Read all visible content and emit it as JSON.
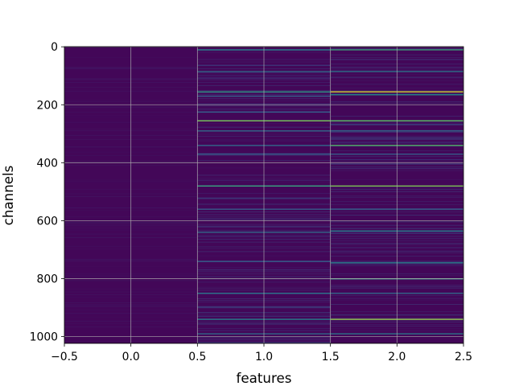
{
  "chart_data": {
    "type": "heatmap",
    "title": "",
    "xlabel": "features",
    "ylabel": "channels",
    "xlim": [
      -0.5,
      2.5
    ],
    "ylim": [
      1023.5,
      -0.5
    ],
    "y_inverted": true,
    "grid": true,
    "colormap": "viridis",
    "columns": [
      0,
      1,
      2
    ],
    "rows": 1024,
    "x_ticks": [
      -0.5,
      0.0,
      0.5,
      1.0,
      1.5,
      2.0,
      2.5
    ],
    "x_tick_labels": [
      "−0.5",
      "0.0",
      "0.5",
      "1.0",
      "1.5",
      "2.0",
      "2.5"
    ],
    "y_ticks": [
      0,
      200,
      400,
      600,
      800,
      1000
    ],
    "y_tick_labels": [
      "0",
      "200",
      "400",
      "600",
      "800",
      "1000"
    ],
    "background_value": 0.02,
    "highlights": [
      {
        "column": 1,
        "row": 10,
        "value": 0.45
      },
      {
        "column": 1,
        "row": 85,
        "value": 0.35
      },
      {
        "column": 1,
        "row": 155,
        "value": 0.55
      },
      {
        "column": 1,
        "row": 170,
        "value": 0.3
      },
      {
        "column": 1,
        "row": 225,
        "value": 0.3
      },
      {
        "column": 1,
        "row": 255,
        "value": 0.8
      },
      {
        "column": 1,
        "row": 290,
        "value": 0.35
      },
      {
        "column": 1,
        "row": 340,
        "value": 0.35
      },
      {
        "column": 1,
        "row": 370,
        "value": 0.3
      },
      {
        "column": 1,
        "row": 480,
        "value": 0.6
      },
      {
        "column": 1,
        "row": 560,
        "value": 0.3
      },
      {
        "column": 1,
        "row": 640,
        "value": 0.35
      },
      {
        "column": 1,
        "row": 740,
        "value": 0.3
      },
      {
        "column": 1,
        "row": 850,
        "value": 0.4
      },
      {
        "column": 1,
        "row": 940,
        "value": 0.45
      },
      {
        "column": 1,
        "row": 990,
        "value": 0.35
      },
      {
        "column": 2,
        "row": 10,
        "value": 0.6
      },
      {
        "column": 2,
        "row": 85,
        "value": 0.4
      },
      {
        "column": 2,
        "row": 155,
        "value": 0.95
      },
      {
        "column": 2,
        "row": 165,
        "value": 0.5
      },
      {
        "column": 2,
        "row": 255,
        "value": 0.75
      },
      {
        "column": 2,
        "row": 290,
        "value": 0.35
      },
      {
        "column": 2,
        "row": 340,
        "value": 0.7
      },
      {
        "column": 2,
        "row": 370,
        "value": 0.3
      },
      {
        "column": 2,
        "row": 480,
        "value": 0.8
      },
      {
        "column": 2,
        "row": 560,
        "value": 0.3
      },
      {
        "column": 2,
        "row": 635,
        "value": 0.45
      },
      {
        "column": 2,
        "row": 745,
        "value": 0.45
      },
      {
        "column": 2,
        "row": 800,
        "value": 0.6
      },
      {
        "column": 2,
        "row": 850,
        "value": 0.35
      },
      {
        "column": 2,
        "row": 940,
        "value": 0.85
      },
      {
        "column": 2,
        "row": 990,
        "value": 0.4
      }
    ]
  }
}
